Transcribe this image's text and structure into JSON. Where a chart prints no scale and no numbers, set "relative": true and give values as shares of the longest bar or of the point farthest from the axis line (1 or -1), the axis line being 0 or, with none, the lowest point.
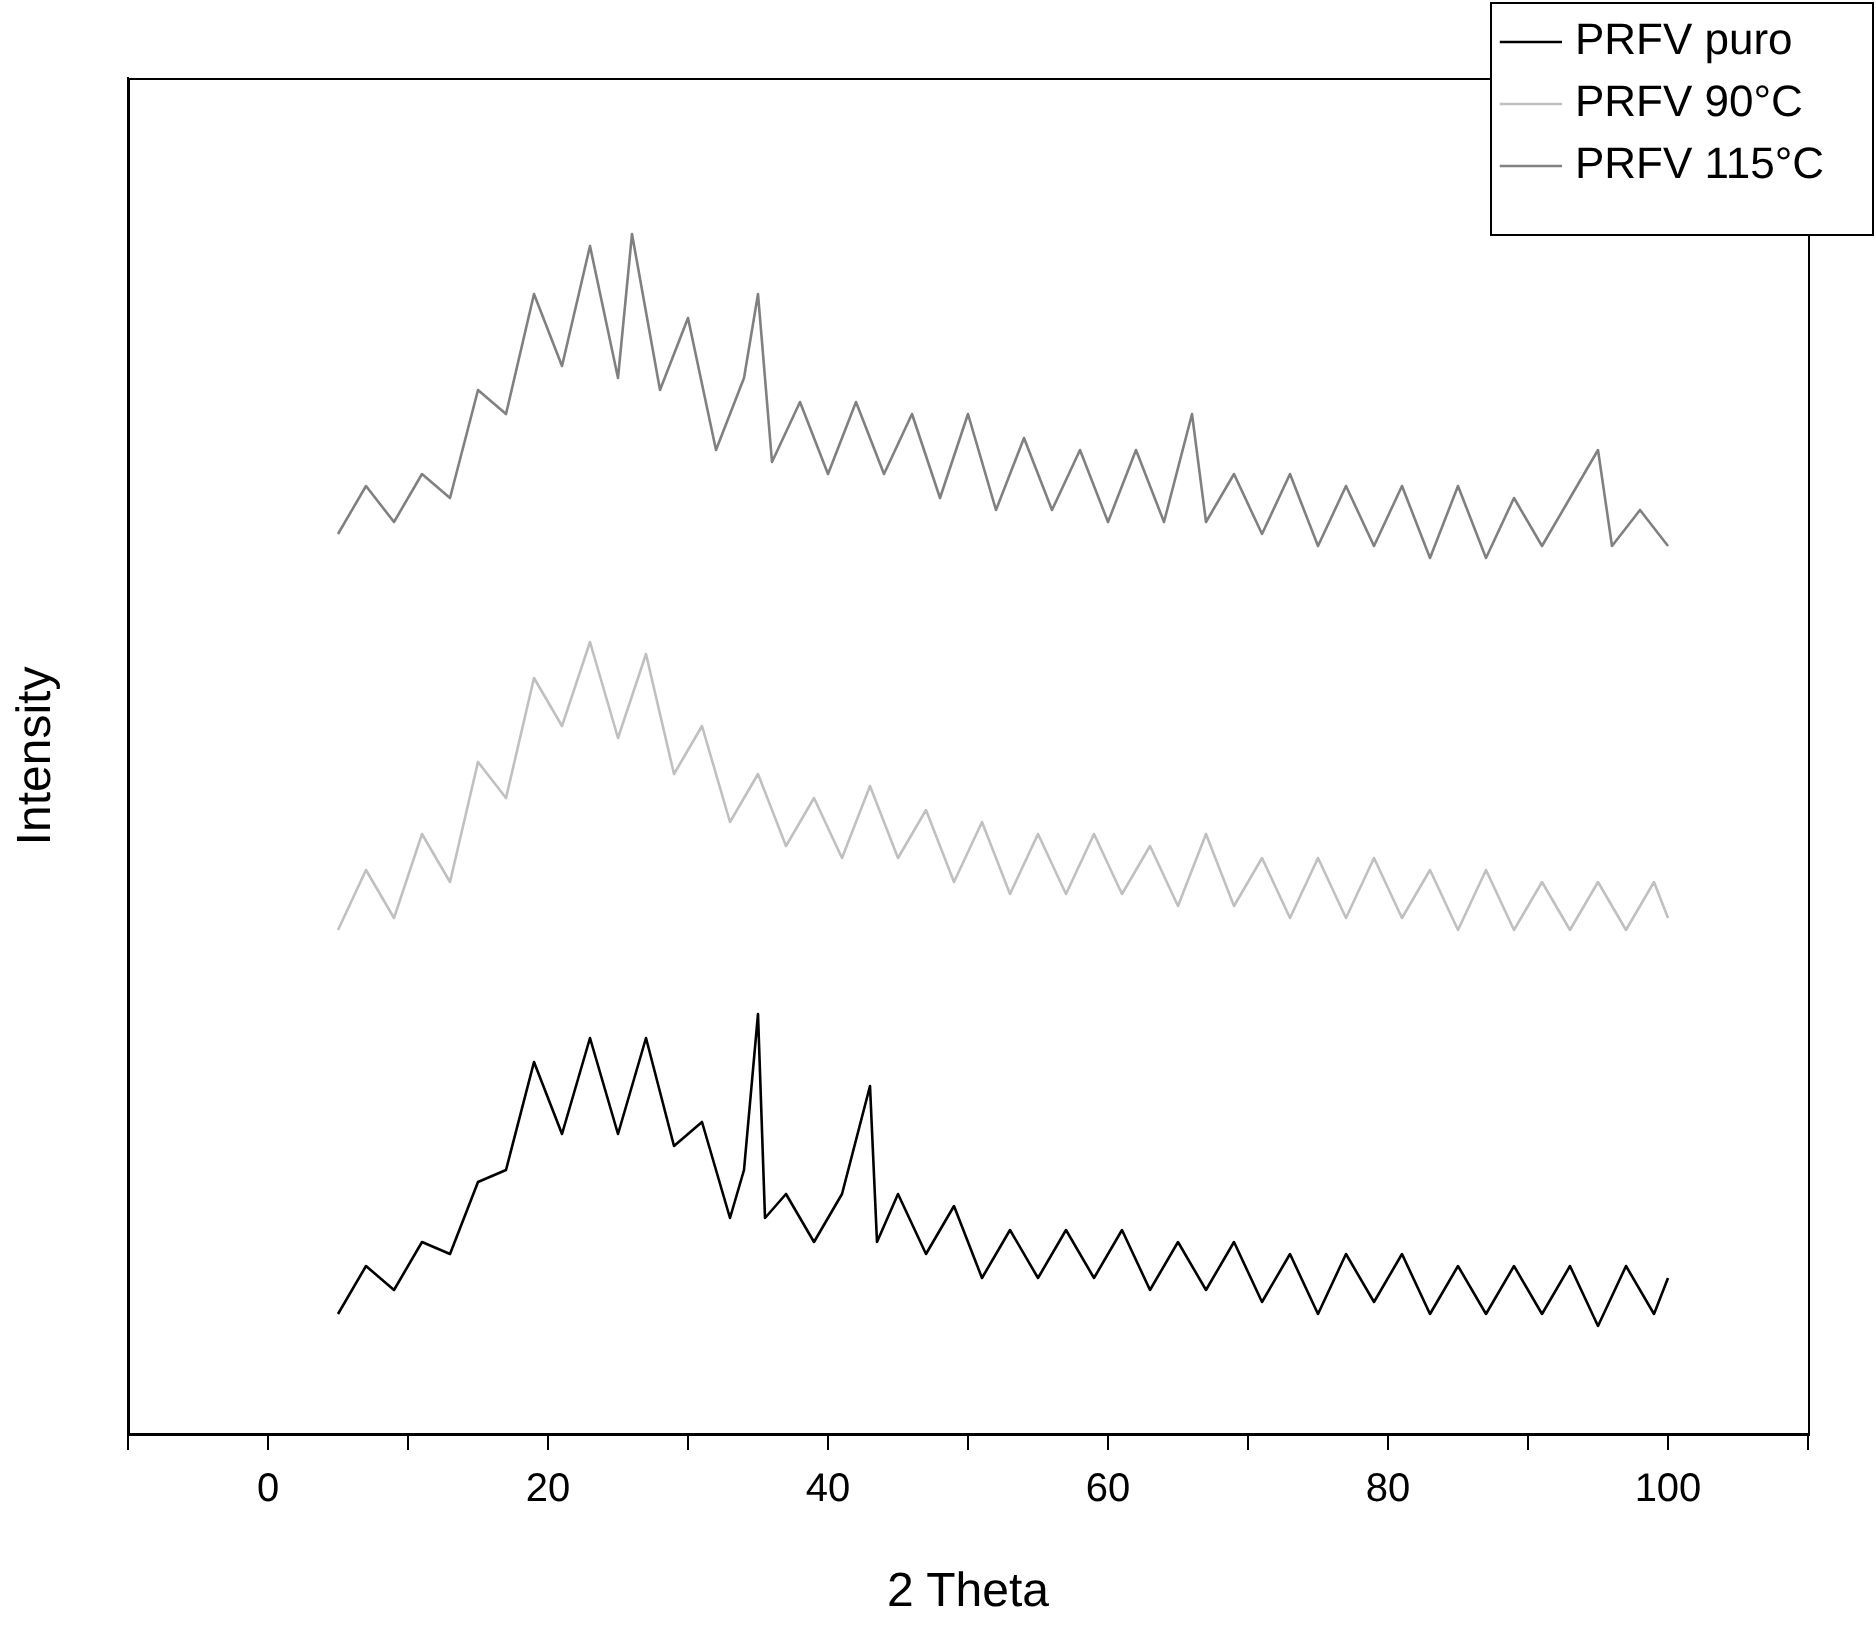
{
  "chart_data": {
    "type": "line",
    "xlabel": "2 Theta",
    "ylabel": "Intensity",
    "relative": true,
    "legend": "top right",
    "grid": false,
    "marker": "none",
    "line_style": "solid",
    "xlim": [
      -10,
      110
    ],
    "xticks": [
      {
        "value": -10,
        "label": null
      },
      0,
      {
        "value": 10,
        "label": null
      },
      20,
      {
        "value": 30,
        "label": null
      },
      40,
      {
        "value": 50,
        "label": null
      },
      60,
      {
        "value": 70,
        "label": null
      },
      80,
      {
        "value": 90,
        "label": null
      },
      100,
      {
        "value": 110,
        "label": null
      }
    ],
    "series": [
      {
        "name": "PRFV puro",
        "color": "#000000",
        "x": [
          5,
          7,
          9,
          11,
          13,
          15,
          17,
          19,
          21,
          23,
          25,
          27,
          29,
          31,
          33,
          34,
          35,
          35.5,
          37,
          39,
          41,
          43,
          43.5,
          45,
          47,
          49,
          51,
          53,
          55,
          57,
          59,
          61,
          63,
          65,
          67,
          69,
          71,
          73,
          75,
          77,
          79,
          81,
          83,
          85,
          87,
          89,
          91,
          93,
          95,
          97,
          99,
          100
        ],
        "values": [
          0.1,
          0.14,
          0.12,
          0.16,
          0.15,
          0.21,
          0.22,
          0.31,
          0.25,
          0.33,
          0.25,
          0.33,
          0.24,
          0.26,
          0.18,
          0.22,
          0.35,
          0.18,
          0.2,
          0.16,
          0.2,
          0.29,
          0.16,
          0.2,
          0.15,
          0.19,
          0.13,
          0.17,
          0.13,
          0.17,
          0.13,
          0.17,
          0.12,
          0.16,
          0.12,
          0.16,
          0.11,
          0.15,
          0.1,
          0.15,
          0.11,
          0.15,
          0.1,
          0.14,
          0.1,
          0.14,
          0.1,
          0.14,
          0.09,
          0.14,
          0.1,
          0.13
        ]
      },
      {
        "name": "PRFV 90°C",
        "color": "#c0c0c0",
        "x": [
          5,
          7,
          9,
          11,
          13,
          15,
          17,
          19,
          21,
          23,
          25,
          27,
          29,
          31,
          33,
          35,
          37,
          39,
          41,
          43,
          45,
          47,
          49,
          51,
          53,
          55,
          57,
          59,
          61,
          63,
          65,
          67,
          69,
          71,
          73,
          75,
          77,
          79,
          81,
          83,
          85,
          87,
          89,
          91,
          93,
          95,
          97,
          99,
          100
        ],
        "values": [
          0.42,
          0.47,
          0.43,
          0.5,
          0.46,
          0.56,
          0.53,
          0.63,
          0.59,
          0.66,
          0.58,
          0.65,
          0.55,
          0.59,
          0.51,
          0.55,
          0.49,
          0.53,
          0.48,
          0.54,
          0.48,
          0.52,
          0.46,
          0.51,
          0.45,
          0.5,
          0.45,
          0.5,
          0.45,
          0.49,
          0.44,
          0.5,
          0.44,
          0.48,
          0.43,
          0.48,
          0.43,
          0.48,
          0.43,
          0.47,
          0.42,
          0.47,
          0.42,
          0.46,
          0.42,
          0.46,
          0.42,
          0.46,
          0.43
        ]
      },
      {
        "name": "PRFV 115°C",
        "color": "#808080",
        "x": [
          5,
          7,
          9,
          11,
          13,
          15,
          17,
          19,
          21,
          23,
          25,
          26,
          28,
          30,
          32,
          34,
          35,
          36,
          38,
          40,
          42,
          44,
          46,
          48,
          50,
          52,
          54,
          56,
          58,
          60,
          62,
          64,
          66,
          67,
          69,
          71,
          73,
          75,
          77,
          79,
          81,
          83,
          85,
          87,
          89,
          91,
          93,
          95,
          96,
          98,
          100
        ],
        "values": [
          0.75,
          0.79,
          0.76,
          0.8,
          0.78,
          0.87,
          0.85,
          0.95,
          0.89,
          0.99,
          0.88,
          1.0,
          0.87,
          0.93,
          0.82,
          0.88,
          0.95,
          0.81,
          0.86,
          0.8,
          0.86,
          0.8,
          0.85,
          0.78,
          0.85,
          0.77,
          0.83,
          0.77,
          0.82,
          0.76,
          0.82,
          0.76,
          0.85,
          0.76,
          0.8,
          0.75,
          0.8,
          0.74,
          0.79,
          0.74,
          0.79,
          0.73,
          0.79,
          0.73,
          0.78,
          0.74,
          0.78,
          0.82,
          0.74,
          0.77,
          0.74
        ]
      }
    ]
  }
}
